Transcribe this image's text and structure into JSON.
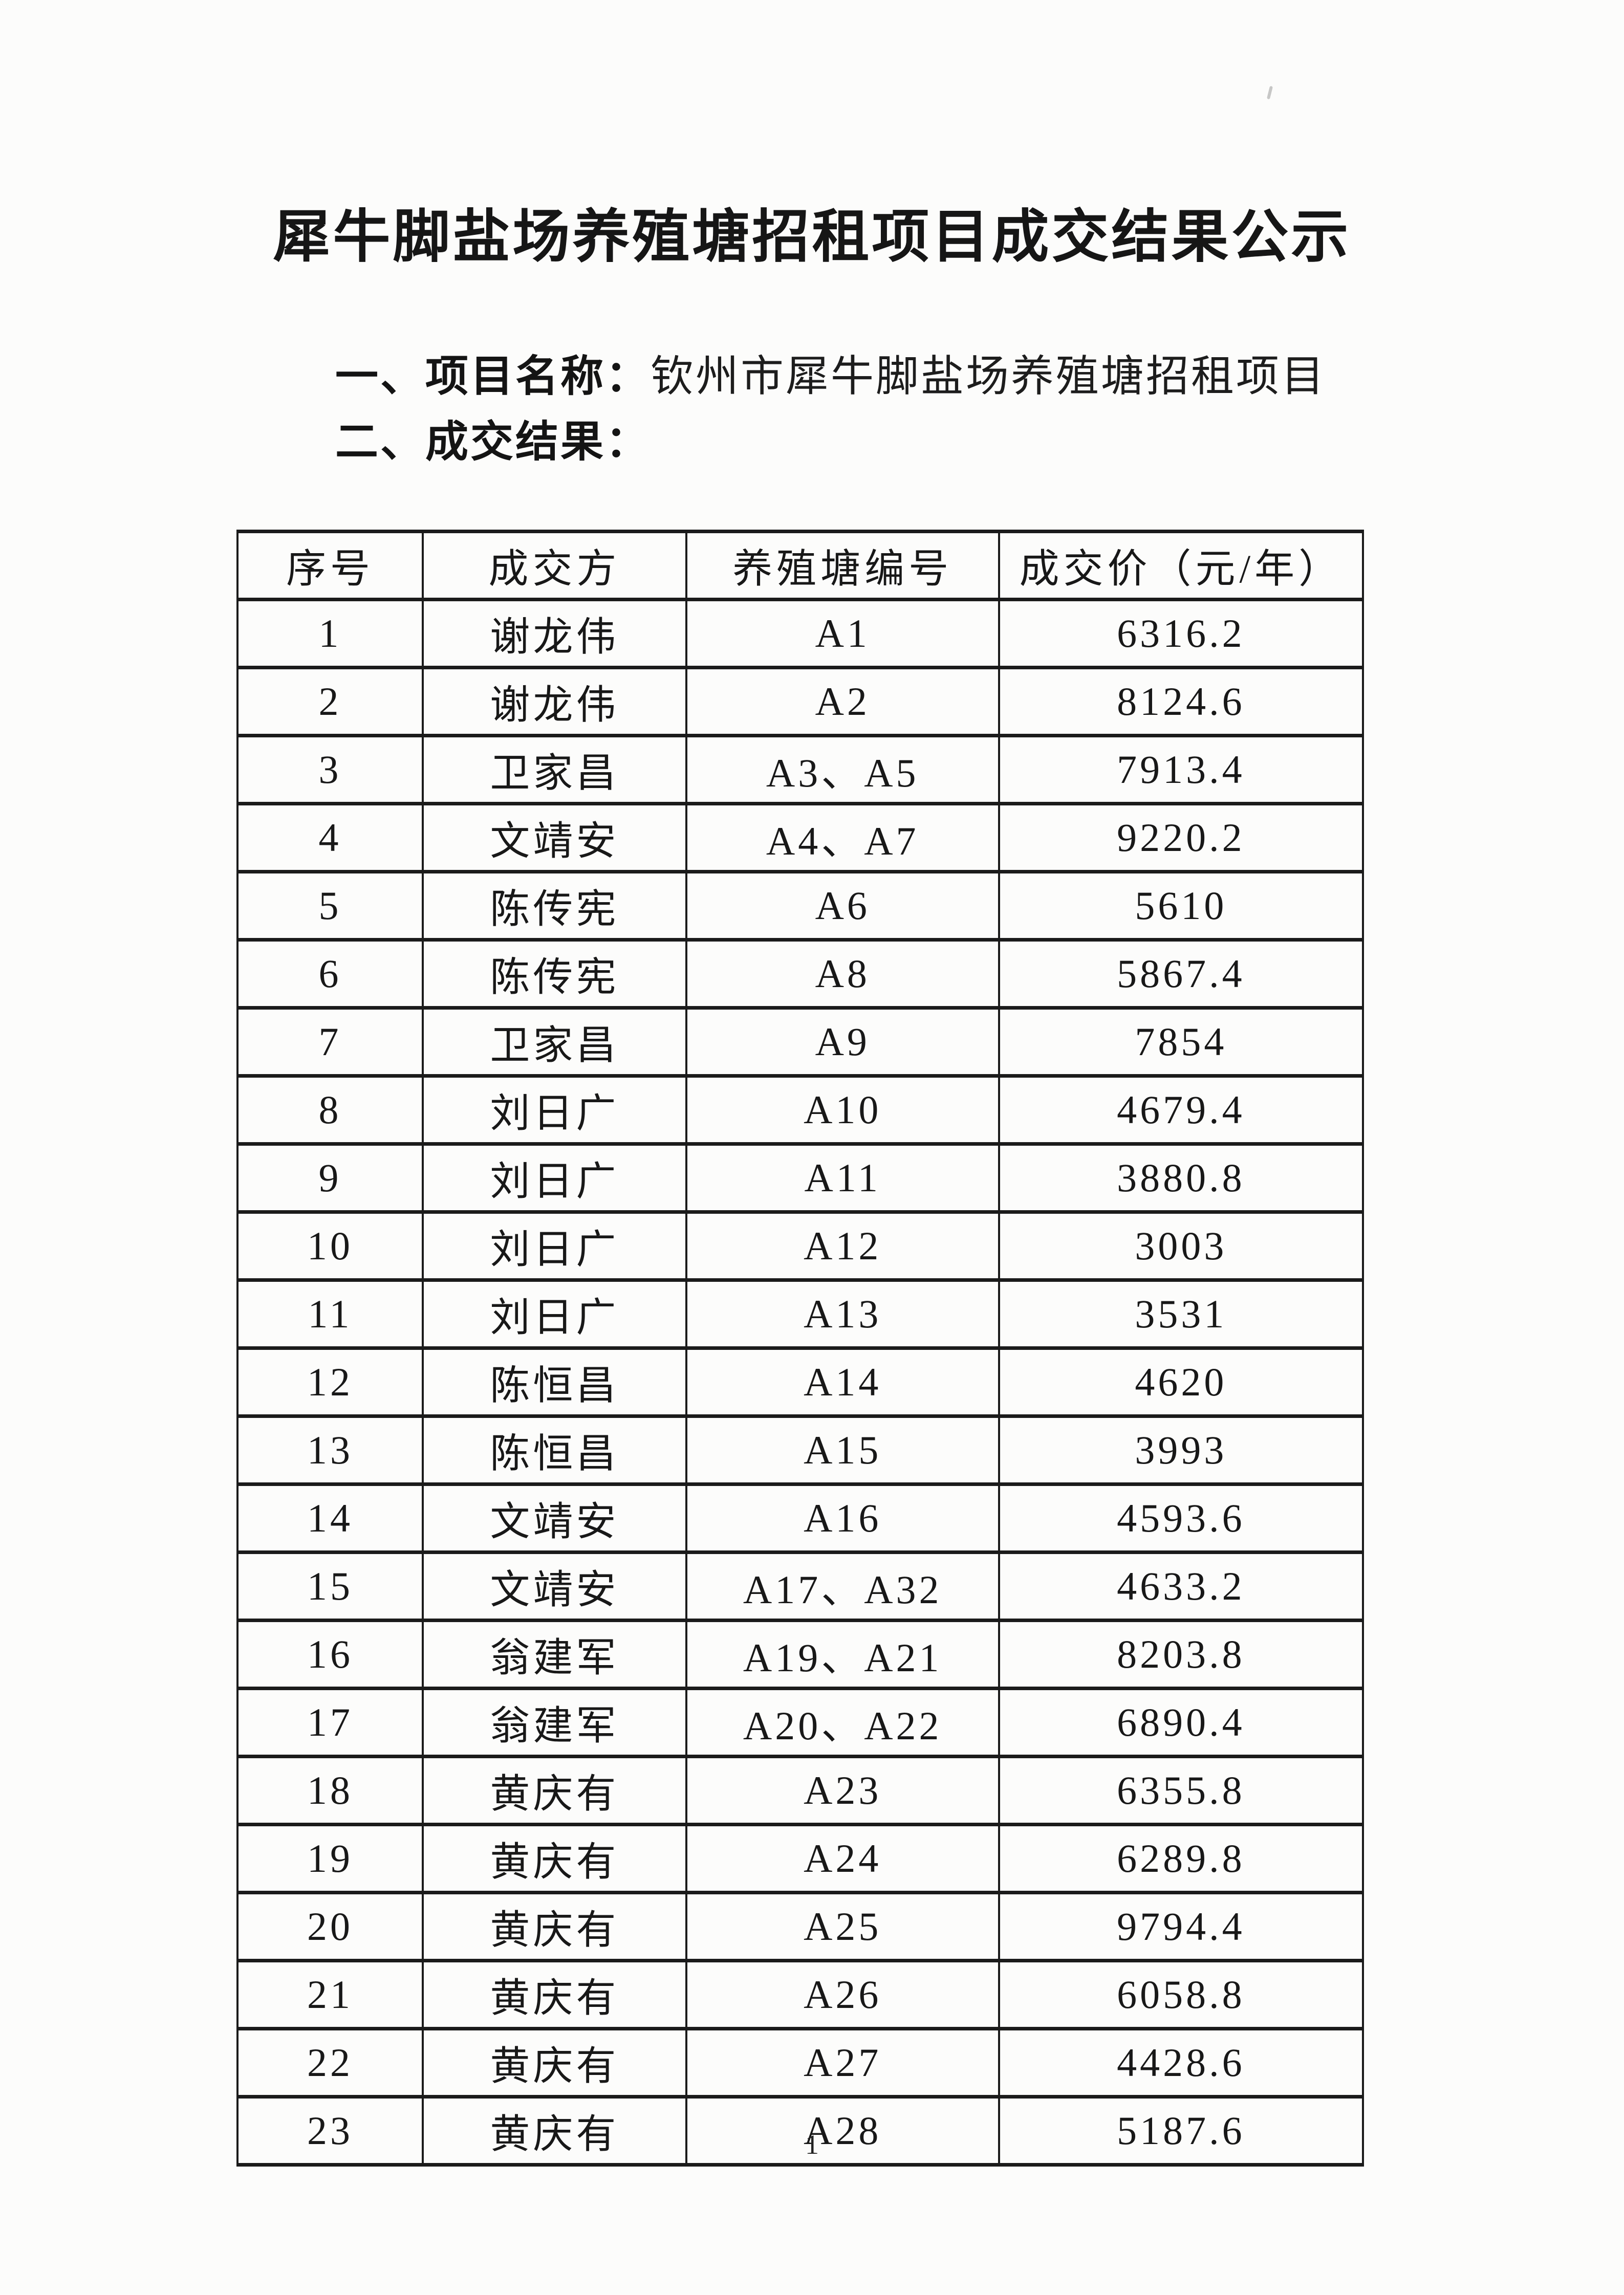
{
  "page": {
    "title": "犀牛脚盐场养殖塘招租项目成交结果公示",
    "line1_label": "一、项目名称：",
    "line1_value": "钦州市犀牛脚盐场养殖塘招租项目",
    "line2_label": "二、成交结果：",
    "page_number": "1"
  },
  "table": {
    "headers": [
      "序号",
      "成交方",
      "养殖塘编号",
      "成交价（元/年）"
    ],
    "rows": [
      [
        "1",
        "谢龙伟",
        "A1",
        "6316.2"
      ],
      [
        "2",
        "谢龙伟",
        "A2",
        "8124.6"
      ],
      [
        "3",
        "卫家昌",
        "A3、A5",
        "7913.4"
      ],
      [
        "4",
        "文靖安",
        "A4、A7",
        "9220.2"
      ],
      [
        "5",
        "陈传宪",
        "A6",
        "5610"
      ],
      [
        "6",
        "陈传宪",
        "A8",
        "5867.4"
      ],
      [
        "7",
        "卫家昌",
        "A9",
        "7854"
      ],
      [
        "8",
        "刘日广",
        "A10",
        "4679.4"
      ],
      [
        "9",
        "刘日广",
        "A11",
        "3880.8"
      ],
      [
        "10",
        "刘日广",
        "A12",
        "3003"
      ],
      [
        "11",
        "刘日广",
        "A13",
        "3531"
      ],
      [
        "12",
        "陈恒昌",
        "A14",
        "4620"
      ],
      [
        "13",
        "陈恒昌",
        "A15",
        "3993"
      ],
      [
        "14",
        "文靖安",
        "A16",
        "4593.6"
      ],
      [
        "15",
        "文靖安",
        "A17、A32",
        "4633.2"
      ],
      [
        "16",
        "翁建军",
        "A19、A21",
        "8203.8"
      ],
      [
        "17",
        "翁建军",
        "A20、A22",
        "6890.4"
      ],
      [
        "18",
        "黄庆有",
        "A23",
        "6355.8"
      ],
      [
        "19",
        "黄庆有",
        "A24",
        "6289.8"
      ],
      [
        "20",
        "黄庆有",
        "A25",
        "9794.4"
      ],
      [
        "21",
        "黄庆有",
        "A26",
        "6058.8"
      ],
      [
        "22",
        "黄庆有",
        "A27",
        "4428.6"
      ],
      [
        "23",
        "黄庆有",
        "A28",
        "5187.6"
      ]
    ]
  }
}
